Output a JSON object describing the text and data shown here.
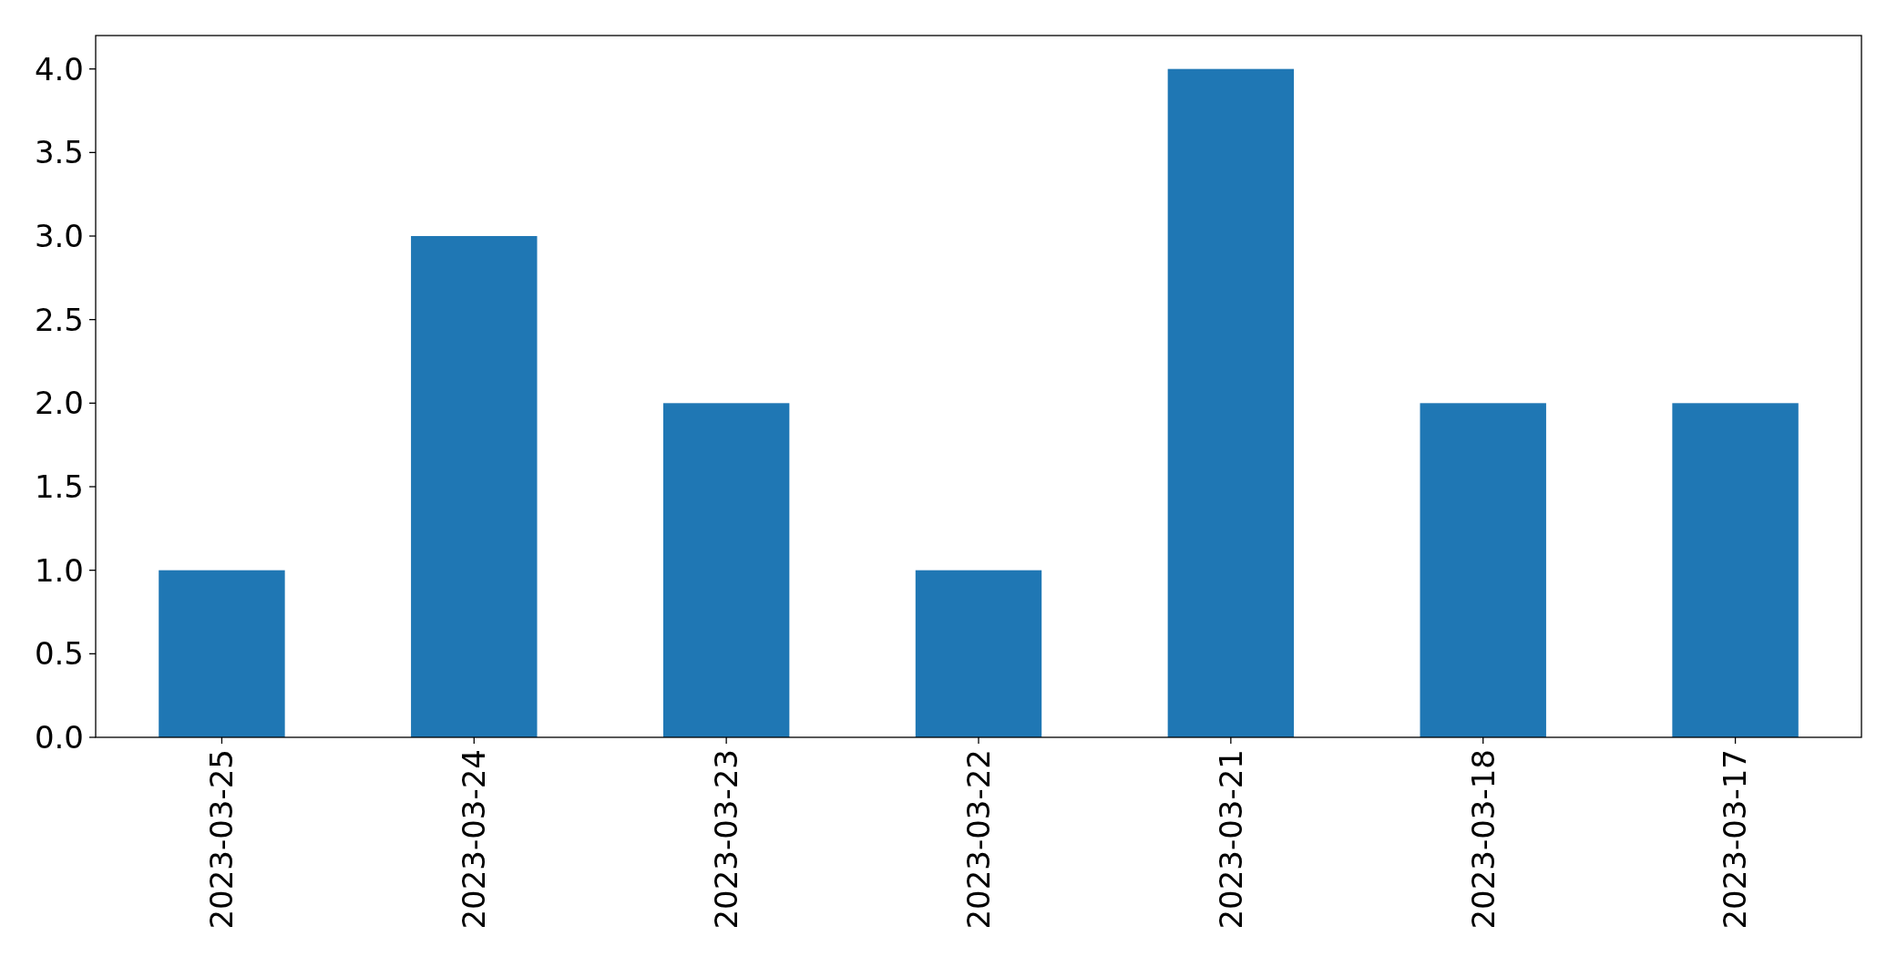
{
  "chart_data": {
    "type": "bar",
    "categories": [
      "2023-03-25",
      "2023-03-24",
      "2023-03-23",
      "2023-03-22",
      "2023-03-21",
      "2023-03-18",
      "2023-03-17"
    ],
    "values": [
      1,
      3,
      2,
      1,
      4,
      2,
      2
    ],
    "color": "#1f77b4",
    "ylim": [
      0,
      4.2
    ],
    "yticks": [
      {
        "value": 0,
        "label": "0.0"
      },
      {
        "value": 0.5,
        "label": "0.5"
      },
      {
        "value": 1,
        "label": "1.0"
      },
      {
        "value": 1.5,
        "label": "1.5"
      },
      {
        "value": 2,
        "label": "2.0"
      },
      {
        "value": 2.5,
        "label": "2.5"
      },
      {
        "value": 3,
        "label": "3.0"
      },
      {
        "value": 3.5,
        "label": "3.5"
      },
      {
        "value": 4,
        "label": "4.0"
      }
    ],
    "grid": false
  }
}
